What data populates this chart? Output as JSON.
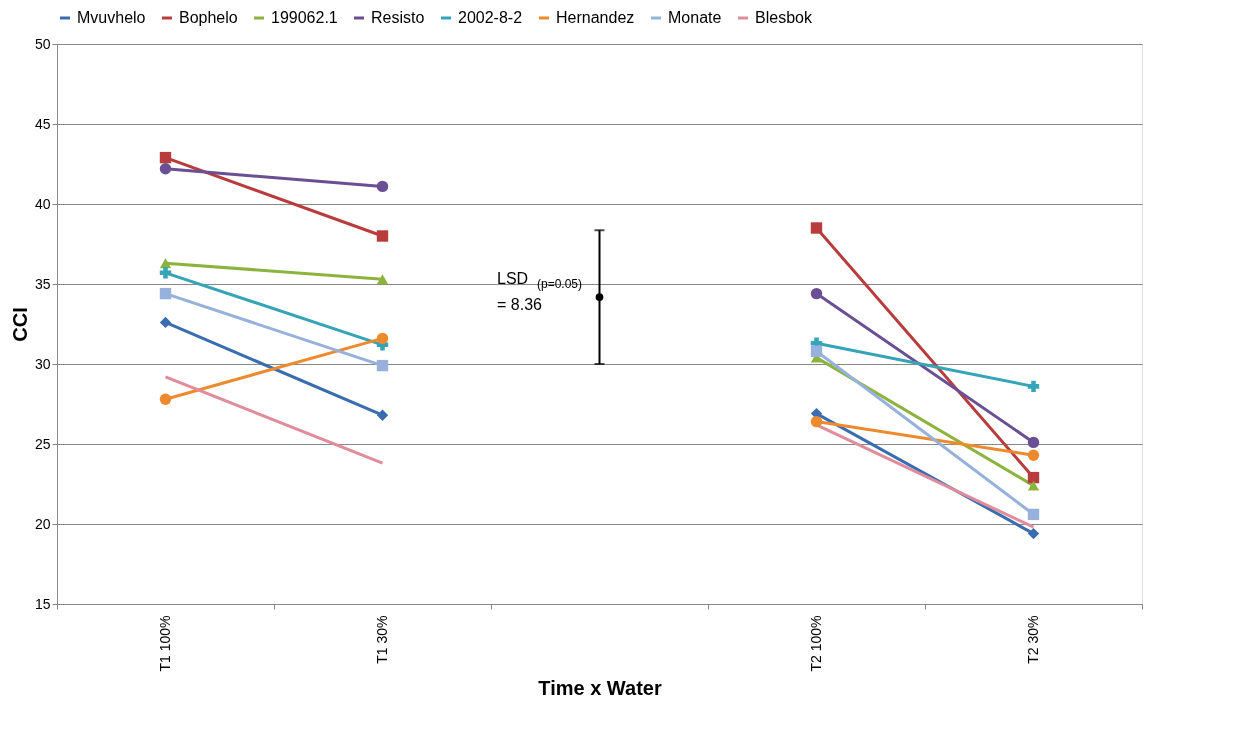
{
  "chart_data": {
    "type": "line",
    "xlabel": "Time x Water",
    "ylabel": "CCI",
    "categories": [
      "T1  100%",
      "T1  30%",
      null,
      "T2  100%",
      "T2  30%"
    ],
    "ylim": [
      15,
      50
    ],
    "yticks": [
      15,
      20,
      25,
      30,
      35,
      40,
      45,
      50
    ],
    "grid": "y",
    "legend": "top",
    "annotations": [
      "LSD$_{(p=0.05)}$\n=  8.36"
    ],
    "series": [
      {
        "name": "Mvuvhelo",
        "color": "#3a6db0",
        "marker": "diamond",
        "values": [
          32.6,
          26.8,
          null,
          26.9,
          19.4
        ]
      },
      {
        "name": "Bophelo",
        "color": "#b83c3c",
        "marker": "square",
        "values": [
          42.9,
          38.0,
          null,
          38.5,
          22.9
        ]
      },
      {
        "name": "199062.1",
        "color": "#8db33f",
        "marker": "triangle",
        "values": [
          36.3,
          35.3,
          null,
          30.4,
          22.4
        ]
      },
      {
        "name": "Resisto",
        "color": "#6a4f94",
        "marker": "circle",
        "values": [
          42.2,
          41.1,
          null,
          34.4,
          25.1
        ]
      },
      {
        "name": "2002-8-2",
        "color": "#35a3b8",
        "marker": "cross",
        "values": [
          35.7,
          31.2,
          null,
          31.3,
          28.6
        ]
      },
      {
        "name": "Hernandez",
        "color": "#ee8a2e",
        "marker": "circle",
        "values": [
          27.8,
          31.6,
          null,
          26.4,
          24.3
        ]
      },
      {
        "name": "Monate",
        "color": "#95b1dc",
        "marker": "square",
        "values": [
          34.4,
          29.9,
          null,
          30.8,
          20.6
        ]
      },
      {
        "name": "Blesbok",
        "color": "#e08c9a",
        "marker": "none",
        "values": [
          29.2,
          23.8,
          null,
          26.2,
          19.8
        ]
      },
      {
        "type": "scatter",
        "color": "#000000",
        "marker": "circle",
        "values": [
          null,
          null,
          34.18,
          null,
          null
        ],
        "errors": [
          null,
          null,
          4.18,
          null,
          null
        ]
      }
    ]
  }
}
